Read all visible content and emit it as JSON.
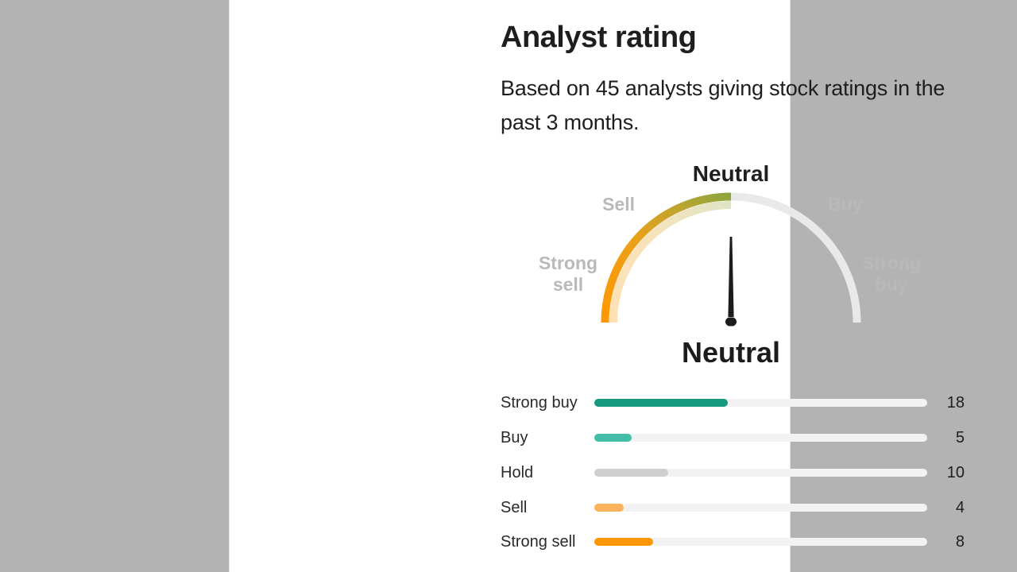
{
  "page": {
    "background_color": "#b3b3b3",
    "card_color": "#ffffff"
  },
  "header": {
    "title": "Analyst rating",
    "subtitle": "Based on 45 analysts giving stock ratings in the past 3 months.",
    "subtitle_lines": [
      "Based on 45 analysts giving stock ratings in the",
      "past 3 months."
    ]
  },
  "gauge": {
    "current_rating": "Neutral",
    "pointer_label": "Neutral",
    "scale_labels": {
      "strong_sell": "Strong sell",
      "sell": "Sell",
      "neutral": "Neutral",
      "buy": "Buy",
      "strong_buy": "Strong buy"
    },
    "gradient": [
      "#ff9800",
      "#eba019",
      "#bda530",
      "#8da53e"
    ],
    "track_color": "#e9e9e9",
    "needle_color": "#1c1c1c",
    "inactive_label_color": "#b9b9b9"
  },
  "chart_data": {
    "type": "bar",
    "title": "Analyst rating",
    "orientation": "horizontal",
    "categories": [
      "Strong buy",
      "Buy",
      "Hold",
      "Sell",
      "Strong sell"
    ],
    "values": [
      18,
      5,
      10,
      4,
      8
    ],
    "total": 45,
    "analyst_count": 45,
    "period": "past 3 months",
    "gauge_value": "Neutral",
    "colors": [
      "#17997f",
      "#43bda8",
      "#cfcfcf",
      "#fbb25c",
      "#fe9701"
    ],
    "track_color": "#f2f2f2",
    "xlim": [
      0,
      45
    ],
    "grid": false,
    "legend": false
  }
}
